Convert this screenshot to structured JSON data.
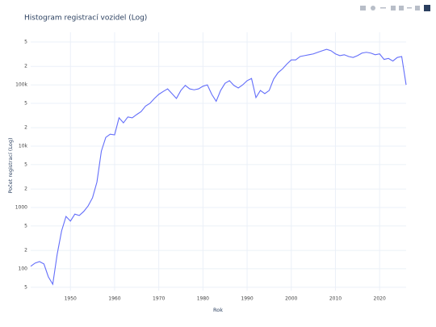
{
  "chart_data": {
    "type": "line",
    "title": "Histogram registrací vozidel (Log)",
    "x_label": "Rok",
    "y_label": "Počet registrací (Log)",
    "x": [
      1941,
      1942,
      1943,
      1944,
      1945,
      1946,
      1947,
      1948,
      1949,
      1950,
      1951,
      1952,
      1953,
      1954,
      1955,
      1956,
      1957,
      1958,
      1959,
      1960,
      1961,
      1962,
      1963,
      1964,
      1965,
      1966,
      1967,
      1968,
      1969,
      1970,
      1971,
      1972,
      1973,
      1974,
      1975,
      1976,
      1977,
      1978,
      1979,
      1980,
      1981,
      1982,
      1983,
      1984,
      1985,
      1986,
      1987,
      1988,
      1989,
      1990,
      1991,
      1992,
      1993,
      1994,
      1995,
      1996,
      1997,
      1998,
      1999,
      2000,
      2001,
      2002,
      2003,
      2004,
      2005,
      2006,
      2007,
      2008,
      2009,
      2010,
      2011,
      2012,
      2013,
      2014,
      2015,
      2016,
      2017,
      2018,
      2019,
      2020,
      2021,
      2022,
      2023,
      2024,
      2025,
      2026
    ],
    "series": [
      {
        "name": "Počet registrací",
        "color": "#636efa",
        "values": [
          110,
          124,
          131,
          120,
          74,
          56,
          173,
          415,
          715,
          600,
          780,
          740,
          860,
          1060,
          1440,
          2600,
          8300,
          13900,
          15700,
          15300,
          29000,
          24000,
          30000,
          29000,
          32800,
          36600,
          45000,
          50000,
          60000,
          70000,
          78000,
          86000,
          72000,
          60000,
          81000,
          98000,
          86000,
          83000,
          86000,
          95000,
          100000,
          70000,
          54000,
          81000,
          106000,
          117000,
          98000,
          89000,
          100000,
          117000,
          127000,
          62000,
          81000,
          72000,
          81000,
          124000,
          158000,
          182000,
          218000,
          255000,
          255000,
          290000,
          300000,
          310000,
          320000,
          340000,
          360000,
          380000,
          360000,
          320000,
          300000,
          310000,
          290000,
          280000,
          300000,
          330000,
          340000,
          330000,
          310000,
          320000,
          260000,
          270000,
          245000,
          280000,
          290000,
          100000
        ]
      }
    ],
    "xlim": [
      1941,
      2026
    ],
    "xticks": [
      1950,
      1960,
      1970,
      1980,
      1990,
      2000,
      2010,
      2020
    ],
    "ylim": [
      44,
      720000
    ],
    "log_y": true,
    "grid": true,
    "yticks": [
      {
        "value": 50,
        "label": "5"
      },
      100,
      {
        "value": 200,
        "label": "2"
      },
      {
        "value": 500,
        "label": "5"
      },
      1000,
      {
        "value": 2000,
        "label": "2"
      },
      {
        "value": 5000,
        "label": "5"
      },
      {
        "value": 10000,
        "label": "10k"
      },
      {
        "value": 20000,
        "label": "2"
      },
      {
        "value": 50000,
        "label": "5"
      },
      {
        "value": 100000,
        "label": "100k"
      },
      {
        "value": 200000,
        "label": "2"
      },
      {
        "value": 500000,
        "label": "5"
      }
    ]
  }
}
